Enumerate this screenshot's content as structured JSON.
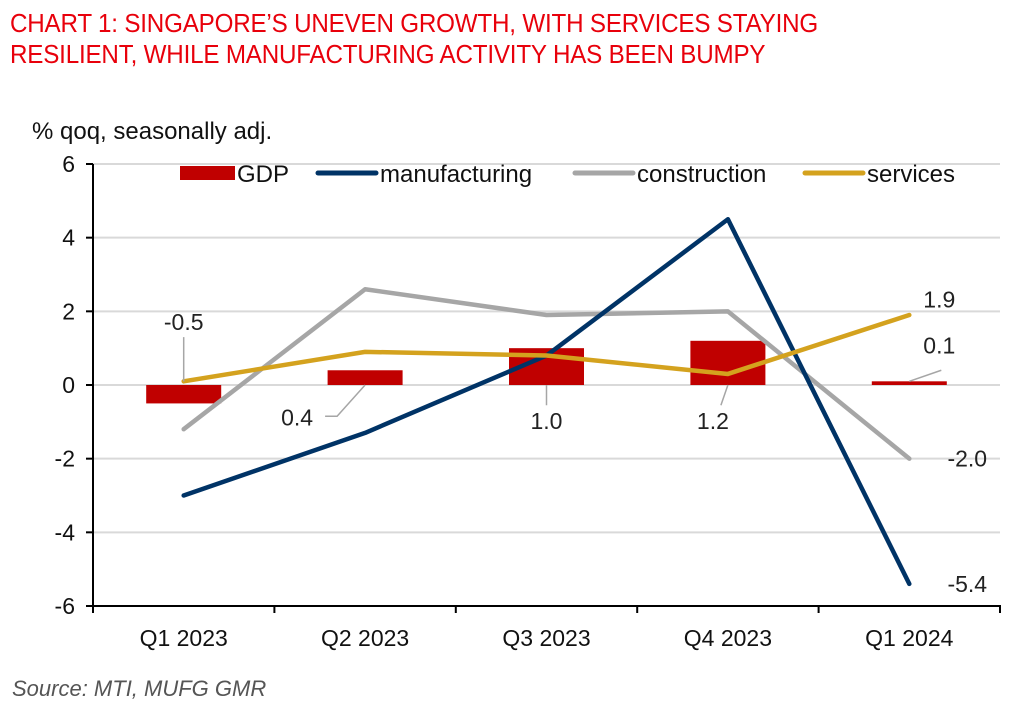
{
  "header": {
    "title_line1": "CHART 1: SINGAPORE’S UNEVEN GROWTH, WITH SERVICES STAYING",
    "title_line2": "RESILIENT, WHILE MANUFACTURING ACTIVITY HAS BEEN BUMPY"
  },
  "footer": {
    "source": "Source: MTI, MUFG GMR"
  },
  "colors": {
    "title": "#e8000b",
    "gdp": "#c00000",
    "manufacturing": "#003366",
    "construction": "#a6a6a6",
    "services": "#d4a21e",
    "grid": "#d9d9d9",
    "axis": "#000000",
    "label_leader": "#a6a6a6"
  },
  "chart_data": {
    "type": "bar+line",
    "title": "CHART 1: SINGAPORE’S UNEVEN GROWTH, WITH SERVICES STAYING RESILIENT, WHILE MANUFACTURING ACTIVITY HAS BEEN BUMPY",
    "ylabel": "% qoq, seasonally adj.",
    "xlabel": "",
    "categories": [
      "Q1 2023",
      "Q2 2023",
      "Q3 2023",
      "Q4 2023",
      "Q1 2024"
    ],
    "ylim": [
      -6,
      6
    ],
    "yticks": [
      6,
      4,
      2,
      0,
      -2,
      -4,
      -6
    ],
    "grid": true,
    "legend_position": "top",
    "series": [
      {
        "name": "GDP",
        "type": "bar",
        "color": "#c00000",
        "values": [
          -0.5,
          0.4,
          1.0,
          1.2,
          0.1
        ]
      },
      {
        "name": "manufacturing",
        "type": "line",
        "color": "#003366",
        "values": [
          -3.0,
          -1.3,
          0.8,
          4.5,
          -5.4
        ]
      },
      {
        "name": "construction",
        "type": "line",
        "color": "#a6a6a6",
        "values": [
          -1.2,
          2.6,
          1.9,
          2.0,
          -2.0
        ]
      },
      {
        "name": "services",
        "type": "line",
        "color": "#d4a21e",
        "values": [
          0.1,
          0.9,
          0.8,
          0.3,
          1.9
        ]
      }
    ],
    "data_labels": [
      {
        "series": "GDP",
        "category": "Q1 2023",
        "text": "-0.5",
        "placement": "above-left"
      },
      {
        "series": "GDP",
        "category": "Q2 2023",
        "text": "0.4",
        "placement": "below-left"
      },
      {
        "series": "GDP",
        "category": "Q3 2023",
        "text": "1.0",
        "placement": "below"
      },
      {
        "series": "GDP",
        "category": "Q4 2023",
        "text": "1.2",
        "placement": "below"
      },
      {
        "series": "GDP",
        "category": "Q1 2024",
        "text": "0.1",
        "placement": "above-right"
      },
      {
        "series": "services",
        "category": "Q1 2024",
        "text": "1.9",
        "placement": "above-right"
      },
      {
        "series": "construction",
        "category": "Q1 2024",
        "text": "-2.0",
        "placement": "right"
      },
      {
        "series": "manufacturing",
        "category": "Q1 2024",
        "text": "-5.4",
        "placement": "right"
      }
    ]
  }
}
